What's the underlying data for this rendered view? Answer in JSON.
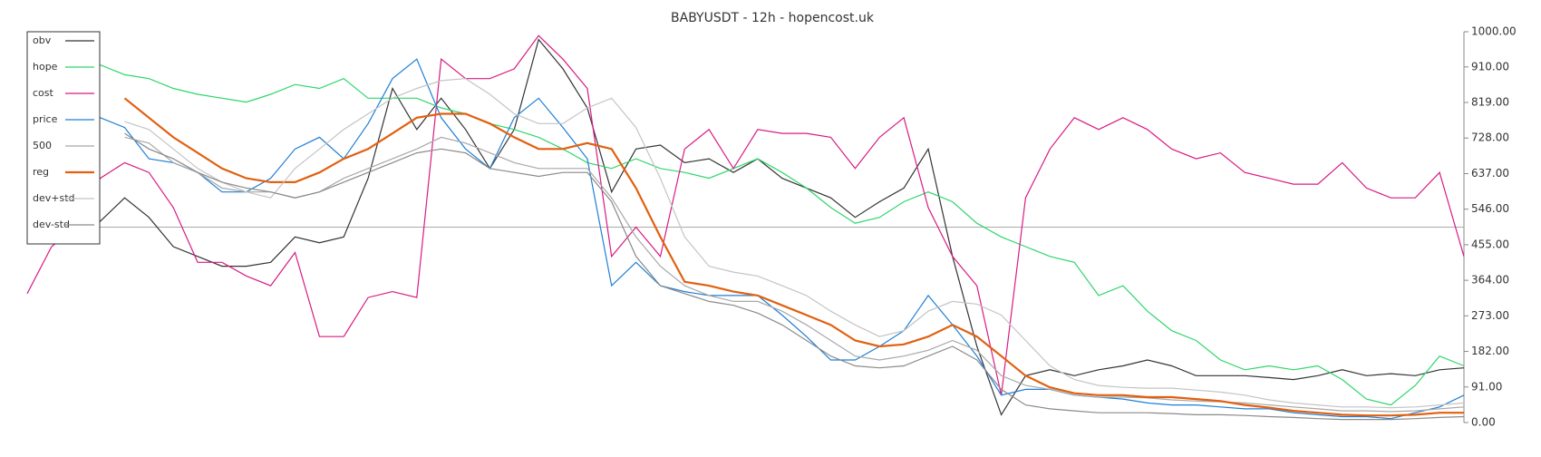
{
  "chart_data": {
    "type": "line",
    "title": "BABYUSDT - 12h - hopencost.uk",
    "categories": [
      null,
      null,
      null,
      null,
      null,
      null,
      null,
      null,
      null,
      null,
      null,
      null,
      null,
      null,
      null,
      null,
      null,
      null,
      null,
      null,
      null,
      null,
      null,
      null,
      null,
      null,
      null,
      null,
      null,
      null,
      null,
      null,
      null,
      null,
      null,
      null,
      null,
      null,
      null,
      null,
      null,
      null,
      null,
      null,
      null,
      null,
      null,
      null,
      null,
      null,
      null,
      null,
      null,
      null,
      null,
      null,
      null,
      null,
      null,
      null
    ],
    "series": [
      {
        "name": "obv",
        "color": "#333333",
        "values": [
          500,
          515,
          540,
          515,
          575,
          525,
          450,
          425,
          400,
          400,
          410,
          475,
          460,
          475,
          625,
          855,
          750,
          830,
          750,
          650,
          750,
          980,
          905,
          805,
          590,
          700,
          710,
          665,
          675,
          640,
          675,
          625,
          600,
          575,
          525,
          565,
          600,
          700,
          425,
          195,
          20,
          120,
          135,
          120,
          135,
          145,
          160,
          145,
          120,
          120,
          120,
          115,
          110,
          120,
          135,
          120,
          125,
          120,
          135,
          140
        ]
      },
      {
        "name": "hope",
        "color": "#2ed66a",
        "values": [
          null,
          null,
          null,
          915,
          890,
          880,
          855,
          840,
          830,
          820,
          840,
          865,
          855,
          880,
          830,
          830,
          830,
          805,
          790,
          765,
          750,
          730,
          700,
          665,
          650,
          675,
          650,
          640,
          625,
          650,
          675,
          640,
          600,
          550,
          510,
          525,
          565,
          590,
          565,
          510,
          475,
          450,
          425,
          410,
          325,
          350,
          285,
          235,
          210,
          160,
          135,
          145,
          135,
          145,
          110,
          60,
          45,
          95,
          170,
          145
        ]
      },
      {
        "name": "cost",
        "color": "#d81b84",
        "values": [
          330,
          450,
          500,
          625,
          665,
          640,
          550,
          410,
          410,
          375,
          350,
          435,
          220,
          220,
          320,
          335,
          320,
          930,
          880,
          880,
          905,
          990,
          930,
          855,
          425,
          500,
          425,
          700,
          750,
          650,
          750,
          740,
          740,
          730,
          650,
          730,
          780,
          550,
          425,
          350,
          70,
          575,
          700,
          780,
          750,
          780,
          750,
          700,
          675,
          690,
          640,
          625,
          610,
          610,
          665,
          600,
          575,
          575,
          640,
          425
        ]
      },
      {
        "name": "price",
        "color": "#1e7fd6",
        "values": [
          null,
          null,
          700,
          780,
          755,
          675,
          665,
          640,
          590,
          590,
          625,
          700,
          730,
          675,
          765,
          880,
          930,
          780,
          700,
          650,
          780,
          830,
          755,
          675,
          350,
          410,
          350,
          335,
          325,
          325,
          325,
          275,
          220,
          160,
          160,
          195,
          235,
          325,
          250,
          170,
          70,
          85,
          85,
          70,
          65,
          60,
          50,
          45,
          45,
          40,
          35,
          35,
          25,
          20,
          15,
          15,
          10,
          25,
          40,
          70
        ]
      },
      {
        "name": "500",
        "color": "#a8a8a8",
        "values": [
          null,
          null,
          null,
          null,
          730,
          715,
          665,
          640,
          600,
          590,
          590,
          575,
          590,
          625,
          650,
          675,
          700,
          730,
          715,
          690,
          665,
          650,
          650,
          650,
          575,
          475,
          400,
          350,
          325,
          310,
          310,
          285,
          250,
          210,
          170,
          160,
          170,
          185,
          210,
          185,
          120,
          95,
          85,
          70,
          65,
          65,
          63,
          58,
          55,
          53,
          50,
          45,
          40,
          35,
          30,
          30,
          28,
          30,
          35,
          40
        ]
      },
      {
        "name": "reg",
        "color": "#e06010",
        "values": [
          null,
          null,
          null,
          null,
          830,
          780,
          730,
          690,
          650,
          625,
          615,
          615,
          640,
          675,
          700,
          740,
          780,
          790,
          790,
          765,
          730,
          700,
          700,
          715,
          700,
          600,
          475,
          360,
          350,
          335,
          325,
          300,
          275,
          250,
          210,
          195,
          200,
          220,
          250,
          220,
          170,
          120,
          90,
          75,
          70,
          70,
          65,
          65,
          60,
          55,
          45,
          38,
          30,
          25,
          20,
          18,
          18,
          20,
          25,
          25
        ]
      },
      {
        "name": "dev+std",
        "color": "#c4c4c4",
        "values": [
          null,
          null,
          null,
          null,
          770,
          750,
          700,
          650,
          615,
          590,
          575,
          650,
          700,
          750,
          790,
          830,
          855,
          875,
          880,
          840,
          790,
          765,
          765,
          805,
          830,
          755,
          625,
          475,
          400,
          385,
          375,
          350,
          325,
          285,
          250,
          220,
          235,
          285,
          310,
          303,
          275,
          210,
          145,
          110,
          95,
          90,
          88,
          88,
          83,
          78,
          70,
          58,
          50,
          45,
          40,
          40,
          38,
          40,
          45,
          50
        ]
      },
      {
        "name": "dev-std",
        "color": "#8a8a8a",
        "values": [
          null,
          null,
          null,
          null,
          740,
          700,
          675,
          640,
          615,
          600,
          590,
          575,
          590,
          615,
          640,
          665,
          690,
          700,
          690,
          650,
          640,
          630,
          640,
          640,
          565,
          425,
          350,
          330,
          310,
          300,
          280,
          250,
          210,
          170,
          145,
          140,
          145,
          170,
          195,
          160,
          85,
          45,
          35,
          30,
          25,
          25,
          25,
          23,
          20,
          20,
          18,
          15,
          13,
          10,
          8,
          8,
          8,
          10,
          13,
          15
        ]
      }
    ],
    "reference_line": 500,
    "ylim": [
      0,
      1000
    ],
    "yticks": [
      {
        "value": 0,
        "label": "0.00"
      },
      {
        "value": 91,
        "label": "91.00"
      },
      {
        "value": 182,
        "label": "182.00"
      },
      {
        "value": 273,
        "label": "273.00"
      },
      {
        "value": 364,
        "label": "364.00"
      },
      {
        "value": 455,
        "label": "455.00"
      },
      {
        "value": 546,
        "label": "546.00"
      },
      {
        "value": 637,
        "label": "637.00"
      },
      {
        "value": 728,
        "label": "728.00"
      },
      {
        "value": 819,
        "label": "819.00"
      },
      {
        "value": 910,
        "label": "910.00"
      },
      {
        "value": 1000,
        "label": "1000.00"
      }
    ],
    "legend": "upper left"
  }
}
